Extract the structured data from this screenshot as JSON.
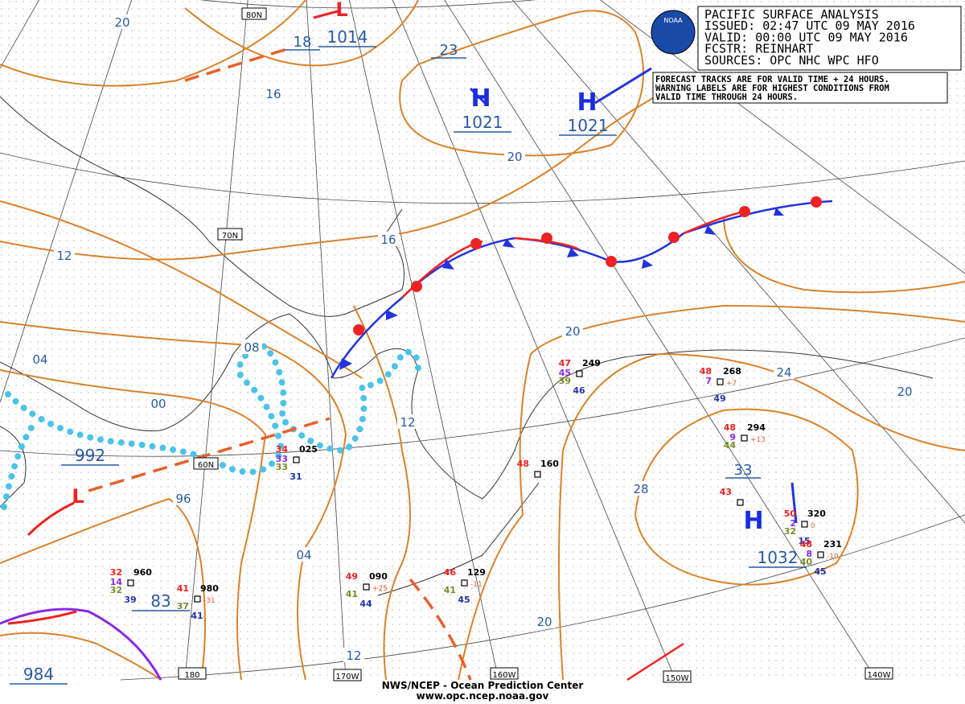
{
  "header": {
    "lines": [
      "PACIFIC SURFACE ANALYSIS",
      "ISSUED: 02:47 UTC 09 MAY 2016",
      "VALID:  00:00 UTC 09 MAY 2016",
      "FCSTR:  REINHART",
      "SOURCES: OPC NHC WPC HFO"
    ],
    "notes": [
      "FORECAST TRACKS ARE FOR VALID TIME + 24 HOURS.",
      "WARNING LABELS ARE FOR HIGHEST CONDITIONS FROM",
      "VALID TIME THROUGH 24 HOURS."
    ],
    "logo": "NOAA"
  },
  "footer": {
    "agency": "NWS/NCEP - Ocean Prediction Center",
    "url": "www.opc.ncep.noaa.gov"
  },
  "graticule": {
    "latitudes": [
      "80N",
      "70N",
      "60N"
    ],
    "longitudes": [
      "180",
      "170W",
      "160W",
      "150W",
      "140W"
    ]
  },
  "isobar_labels": [
    20,
    16,
    20,
    12,
    16,
    "04",
    "00",
    96,
    "08",
    12,
    20,
    24,
    20,
    28,
    "04",
    12,
    20
  ],
  "pressure_centers": [
    {
      "symbol": "L",
      "forecast": 18,
      "pressure": 1014
    },
    {
      "symbol": "H",
      "forecast": 23,
      "pressure": 1021
    },
    {
      "symbol": "H",
      "pressure": 1021
    },
    {
      "symbol": "L",
      "pressure": 992
    },
    {
      "symbol": "H",
      "forecast": 33,
      "pressure": 1032
    },
    {
      "pressure": 83
    },
    {
      "pressure": 984
    }
  ],
  "stations": [
    {
      "temp": 34,
      "pressure": "025",
      "dewpoint": 33,
      "extra": 33,
      "waves": 31
    },
    {
      "temp": 32,
      "pressure": 960,
      "dewpoint": 32,
      "extra": 14,
      "waves": 39
    },
    {
      "temp": 41,
      "pressure": 980,
      "tendency": -31,
      "dewpoint": 37,
      "waves": 41
    },
    {
      "temp": 49,
      "pressure": "090",
      "tendency": "+25",
      "dewpoint": 41,
      "waves": 44
    },
    {
      "temp": 46,
      "pressure": 129,
      "tendency": -11,
      "dewpoint": 41,
      "waves": 45
    },
    {
      "temp": 48,
      "pressure": 160
    },
    {
      "temp": 47,
      "pressure": 249,
      "extra": 45,
      "dewpoint": 39,
      "waves": 46
    },
    {
      "temp": 48,
      "pressure": 268,
      "tendency": "+7",
      "extra": 7,
      "waves": 49
    },
    {
      "temp": 48,
      "pressure": 294,
      "tendency": "+13",
      "dewpoint": 44,
      "extra": 9
    },
    {
      "temp": 43
    },
    {
      "temp": 50,
      "pressure": 320,
      "tendency": 0,
      "dewpoint": 32,
      "extra": 2,
      "waves": 15
    },
    {
      "temp": 48,
      "pressure": 231,
      "tendency": -10,
      "dewpoint": 40,
      "extra": 8,
      "waves": 45
    }
  ]
}
